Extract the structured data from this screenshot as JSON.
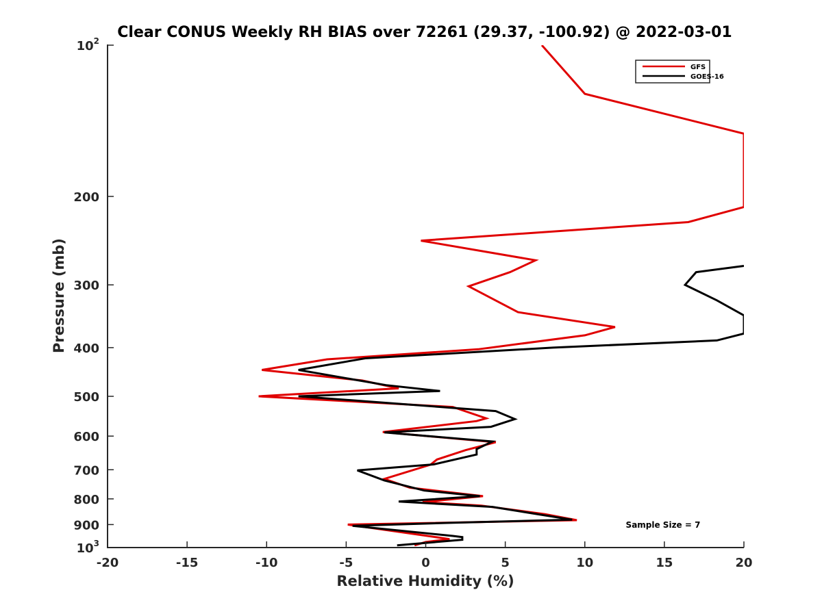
{
  "chart_data": {
    "type": "line",
    "title": "Clear CONUS Weekly RH BIAS over 72261 (29.37, -100.92) @ 2022-03-01",
    "xlabel": "Relative Humidity (%)",
    "ylabel": "Pressure (mb)",
    "xlim": [
      -20,
      20
    ],
    "ylim": [
      1000,
      100
    ],
    "yscale": "log",
    "y_reversed": true,
    "x_ticks": [
      "-20",
      "-15",
      "-10",
      "-5",
      "0",
      "5",
      "10",
      "15",
      "20"
    ],
    "x_tick_values": [
      -20,
      -15,
      -10,
      -5,
      0,
      5,
      10,
      15,
      20
    ],
    "y_ticks": [
      {
        "value": 100,
        "base": "10",
        "exp": "2"
      },
      {
        "value": 200,
        "base": "200",
        "exp": ""
      },
      {
        "value": 300,
        "base": "300",
        "exp": ""
      },
      {
        "value": 400,
        "base": "400",
        "exp": ""
      },
      {
        "value": 500,
        "base": "500",
        "exp": ""
      },
      {
        "value": 600,
        "base": "600",
        "exp": ""
      },
      {
        "value": 700,
        "base": "700",
        "exp": ""
      },
      {
        "value": 800,
        "base": "800",
        "exp": ""
      },
      {
        "value": 900,
        "base": "900",
        "exp": ""
      },
      {
        "value": 1000,
        "base": "10",
        "exp": "3"
      }
    ],
    "legend_position": "top-right",
    "grid": false,
    "annotation": "Sample Size = 7",
    "series": [
      {
        "name": "GFS",
        "color": "#e00000",
        "points": [
          [
            7.3,
            100
          ],
          [
            10,
            125
          ],
          [
            20,
            150
          ],
          [
            20,
            210
          ],
          [
            16.5,
            225
          ],
          [
            -0.3,
            245
          ],
          [
            6.9,
            268
          ],
          [
            5.3,
            283
          ],
          [
            2.7,
            302
          ],
          [
            5.8,
            340
          ],
          [
            11.9,
            364
          ],
          [
            10,
            378
          ],
          [
            3.3,
            403
          ],
          [
            -6.2,
            422
          ],
          [
            -10.3,
            443
          ],
          [
            -4,
            465
          ],
          [
            -1.7,
            482
          ],
          [
            -10.5,
            500
          ],
          [
            1.7,
            525
          ],
          [
            3.8,
            553
          ],
          [
            3.2,
            560
          ],
          [
            -2.7,
            589
          ],
          [
            4.4,
            617
          ],
          [
            2.5,
            640
          ],
          [
            0.7,
            668
          ],
          [
            0.3,
            684
          ],
          [
            -2.6,
            730
          ],
          [
            -1,
            760
          ],
          [
            3.6,
            790
          ],
          [
            -0.2,
            812
          ],
          [
            3.5,
            825
          ],
          [
            7.5,
            858
          ],
          [
            9.5,
            882
          ],
          [
            -4.9,
            900
          ],
          [
            0.3,
            950
          ],
          [
            1.5,
            962
          ],
          [
            0,
            975
          ],
          [
            -0.7,
            990
          ]
        ]
      },
      {
        "name": "GOES-16",
        "color": "#000000",
        "points": [
          [
            20,
            275
          ],
          [
            17,
            283
          ],
          [
            16.3,
            300
          ],
          [
            18.3,
            322
          ],
          [
            20,
            345
          ],
          [
            20,
            375
          ],
          [
            18.3,
            387
          ],
          [
            8,
            400
          ],
          [
            -3.8,
            420
          ],
          [
            -8,
            443
          ],
          [
            -2.5,
            475
          ],
          [
            0.9,
            488
          ],
          [
            -8,
            500
          ],
          [
            4.4,
            535
          ],
          [
            5.6,
            555
          ],
          [
            4.1,
            575
          ],
          [
            -2.6,
            590
          ],
          [
            4.2,
            615
          ],
          [
            3.2,
            637
          ],
          [
            3.2,
            653
          ],
          [
            0.5,
            683
          ],
          [
            -4.3,
            702
          ],
          [
            -2.6,
            735
          ],
          [
            -0.1,
            770
          ],
          [
            3.4,
            790
          ],
          [
            -1.7,
            810
          ],
          [
            4.2,
            830
          ],
          [
            7.2,
            860
          ],
          [
            9.2,
            880
          ],
          [
            1.5,
            893
          ],
          [
            -4.6,
            905
          ],
          [
            1.7,
            948
          ],
          [
            2.3,
            953
          ],
          [
            2.3,
            965
          ],
          [
            -1.8,
            990
          ]
        ]
      }
    ]
  }
}
